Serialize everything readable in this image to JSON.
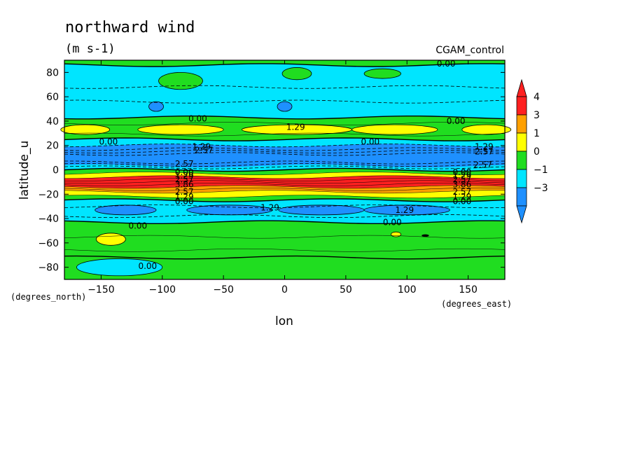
{
  "chart_data": {
    "type": "contour",
    "title": "northward wind",
    "units": "(m s-1)",
    "dataset": "CGAM_control",
    "xlabel": "lon",
    "ylabel": "latitude_u",
    "x_units": "(degrees_east)",
    "y_units": "(degrees_north)",
    "xlim": [
      -180,
      180
    ],
    "ylim": [
      -90,
      90
    ],
    "x_ticks": [
      -150,
      -100,
      -50,
      0,
      50,
      100,
      150
    ],
    "x_tick_labels": [
      "−150",
      "−100",
      "−50",
      "0",
      "50",
      "100",
      "150"
    ],
    "y_ticks": [
      80,
      60,
      40,
      20,
      0,
      -20,
      -40,
      -60,
      -80
    ],
    "y_tick_labels": [
      "80",
      "60",
      "40",
      "20",
      "0",
      "−20",
      "−40",
      "−60",
      "−80"
    ],
    "colorbar": {
      "labels": [
        "4",
        "3",
        "1",
        "0",
        "−1",
        "−3"
      ],
      "colors": [
        "#ff2020",
        "#ffa000",
        "#ffff00",
        "#20dd20",
        "#00e5ff",
        "#1e90ff"
      ]
    },
    "bands": [
      {
        "lat_top": 90,
        "lat_bottom": 86,
        "color": "#20dd20"
      },
      {
        "lat_top": 86,
        "lat_bottom": 43,
        "color": "#00e5ff"
      },
      {
        "lat_top": 43,
        "lat_bottom": 25,
        "color": "#20dd20"
      },
      {
        "lat_top": 25,
        "lat_bottom": 20,
        "color": "#00e5ff"
      },
      {
        "lat_top": 20,
        "lat_bottom": 3,
        "color": "#1e90ff"
      },
      {
        "lat_top": 3,
        "lat_bottom": 0,
        "color": "#00e5ff"
      },
      {
        "lat_top": 0,
        "lat_bottom": -3,
        "color": "#20dd20"
      },
      {
        "lat_top": -3,
        "lat_bottom": -6,
        "color": "#ffff00"
      },
      {
        "lat_top": -6,
        "lat_bottom": -14,
        "color": "#ff2020"
      },
      {
        "lat_top": -14,
        "lat_bottom": -18,
        "color": "#ffa000"
      },
      {
        "lat_top": -18,
        "lat_bottom": -22,
        "color": "#ffff00"
      },
      {
        "lat_top": -22,
        "lat_bottom": -25,
        "color": "#20dd20"
      },
      {
        "lat_top": -25,
        "lat_bottom": -43,
        "color": "#00e5ff"
      },
      {
        "lat_top": -43,
        "lat_bottom": -90,
        "color": "#20dd20"
      }
    ],
    "blobs": [
      {
        "lon": -85,
        "lat": 33,
        "rlon": 35,
        "rlat": 4,
        "color": "#ffff00"
      },
      {
        "lon": 10,
        "lat": 33,
        "rlon": 45,
        "rlat": 4,
        "color": "#ffff00"
      },
      {
        "lon": 90,
        "lat": 33,
        "rlon": 35,
        "rlat": 4,
        "color": "#ffff00"
      },
      {
        "lon": 165,
        "lat": 33,
        "rlon": 20,
        "rlat": 4,
        "color": "#ffff00"
      },
      {
        "lon": -163,
        "lat": 33,
        "rlon": 20,
        "rlat": 4,
        "color": "#ffff00"
      },
      {
        "lon": -85,
        "lat": 73,
        "rlon": 18,
        "rlat": 7,
        "color": "#20dd20"
      },
      {
        "lon": 10,
        "lat": 79,
        "rlon": 12,
        "rlat": 5,
        "color": "#20dd20"
      },
      {
        "lon": 80,
        "lat": 79,
        "rlon": 15,
        "rlat": 4,
        "color": "#20dd20"
      },
      {
        "lon": -105,
        "lat": 52,
        "rlon": 6,
        "rlat": 4,
        "color": "#1e90ff"
      },
      {
        "lon": 0,
        "lat": 52,
        "rlon": 6,
        "rlat": 4,
        "color": "#1e90ff"
      },
      {
        "lon": -130,
        "lat": -33,
        "rlon": 25,
        "rlat": 4,
        "color": "#1e90ff"
      },
      {
        "lon": -45,
        "lat": -33,
        "rlon": 35,
        "rlat": 4,
        "color": "#1e90ff"
      },
      {
        "lon": 30,
        "lat": -33,
        "rlon": 35,
        "rlat": 4,
        "color": "#1e90ff"
      },
      {
        "lon": 100,
        "lat": -33,
        "rlon": 35,
        "rlat": 4,
        "color": "#1e90ff"
      },
      {
        "lon": -142,
        "lat": -57,
        "rlon": 12,
        "rlat": 5,
        "color": "#ffff00"
      },
      {
        "lon": 91,
        "lat": -53,
        "rlon": 4,
        "rlat": 2,
        "color": "#ffff00"
      },
      {
        "lon": 115,
        "lat": -54,
        "rlon": 3,
        "rlat": 1,
        "color": "#000000"
      },
      {
        "lon": -135,
        "lat": -80,
        "rlon": 35,
        "rlat": 7,
        "color": "#00e5ff"
      }
    ],
    "contours": [
      {
        "lat": 86,
        "style": "solid"
      },
      {
        "lat": 68,
        "style": "dashed"
      },
      {
        "lat": 56,
        "style": "dashed"
      },
      {
        "lat": 43,
        "style": "solid"
      },
      {
        "lat": 38,
        "style": "thin"
      },
      {
        "lat": 29,
        "style": "thin"
      },
      {
        "lat": 25,
        "style": "solid"
      },
      {
        "lat": 20,
        "style": "dashed"
      },
      {
        "lat": 17,
        "style": "dashed"
      },
      {
        "lat": 15,
        "style": "dashed"
      },
      {
        "lat": 13,
        "style": "dashed"
      },
      {
        "lat": 6,
        "style": "dashed"
      },
      {
        "lat": 4,
        "style": "dashed"
      },
      {
        "lat": 2,
        "style": "dashed"
      },
      {
        "lat": 0,
        "style": "solid"
      },
      {
        "lat": -3,
        "style": "thin"
      },
      {
        "lat": -6,
        "style": "thin"
      },
      {
        "lat": -8,
        "style": "thin"
      },
      {
        "lat": -10,
        "style": "thin"
      },
      {
        "lat": -12,
        "style": "thin"
      },
      {
        "lat": -14,
        "style": "thin"
      },
      {
        "lat": -16,
        "style": "thin"
      },
      {
        "lat": -18,
        "style": "thin"
      },
      {
        "lat": -22,
        "style": "thin"
      },
      {
        "lat": -25,
        "style": "solid"
      },
      {
        "lat": -30,
        "style": "dashed"
      },
      {
        "lat": -38,
        "style": "dashed"
      },
      {
        "lat": -43,
        "style": "solid"
      },
      {
        "lat": -55,
        "style": "thin"
      },
      {
        "lat": -66,
        "style": "thin"
      },
      {
        "lat": -72,
        "style": "solid"
      }
    ],
    "contour_labels": [
      {
        "text": "0.00",
        "lon": 132,
        "lat": 87
      },
      {
        "text": "0.00",
        "lon": -71,
        "lat": 42
      },
      {
        "text": "1.29",
        "lon": 9,
        "lat": 35
      },
      {
        "text": "0.00",
        "lon": 140,
        "lat": 40
      },
      {
        "text": "0.00",
        "lon": -144,
        "lat": 23
      },
      {
        "text": "0.00",
        "lon": 70,
        "lat": 23
      },
      {
        "text": "1.29",
        "lon": -68,
        "lat": 19
      },
      {
        "text": "2.57",
        "lon": -66,
        "lat": 16
      },
      {
        "text": "1.29",
        "lon": 163,
        "lat": 19
      },
      {
        "text": "2.57",
        "lon": 163,
        "lat": 15
      },
      {
        "text": "2.57",
        "lon": -82,
        "lat": 5
      },
      {
        "text": "2.57",
        "lon": 162,
        "lat": 4
      },
      {
        "text": "0.00",
        "lon": -82,
        "lat": -2
      },
      {
        "text": "1.29",
        "lon": -82,
        "lat": -5
      },
      {
        "text": "2.57",
        "lon": -82,
        "lat": -8
      },
      {
        "text": "3.86",
        "lon": -82,
        "lat": -12
      },
      {
        "text": "2.57",
        "lon": -82,
        "lat": -18
      },
      {
        "text": "1.29",
        "lon": -82,
        "lat": -22
      },
      {
        "text": "0.00",
        "lon": -82,
        "lat": -26
      },
      {
        "text": "0.00",
        "lon": 145,
        "lat": -2
      },
      {
        "text": "1.29",
        "lon": 145,
        "lat": -5
      },
      {
        "text": "2.57",
        "lon": 145,
        "lat": -8
      },
      {
        "text": "3.86",
        "lon": 145,
        "lat": -12
      },
      {
        "text": "2.57",
        "lon": 145,
        "lat": -18
      },
      {
        "text": "1.29",
        "lon": 145,
        "lat": -22
      },
      {
        "text": "0.00",
        "lon": 145,
        "lat": -26
      },
      {
        "text": "1.29",
        "lon": -12,
        "lat": -31
      },
      {
        "text": "1.29",
        "lon": 98,
        "lat": -33
      },
      {
        "text": "0.00",
        "lon": -120,
        "lat": -46
      },
      {
        "text": "0.00",
        "lon": 88,
        "lat": -43
      },
      {
        "text": "0.00",
        "lon": -112,
        "lat": -79
      }
    ]
  }
}
